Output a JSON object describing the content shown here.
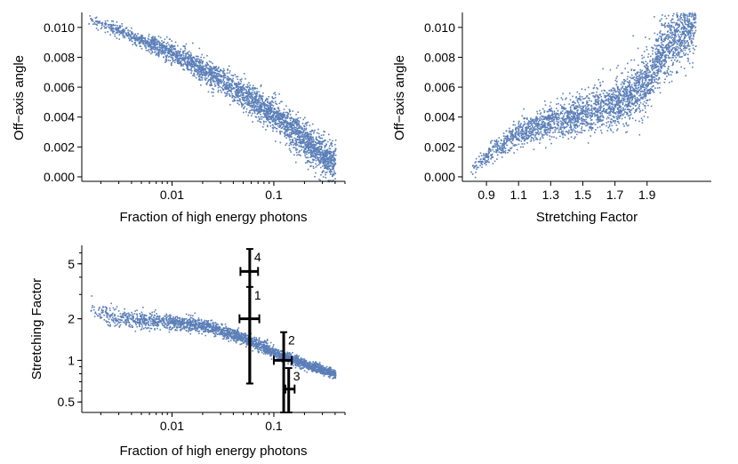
{
  "colors": {
    "points": "#5b7fb8",
    "error_bars": "#000000"
  },
  "chart_data": [
    {
      "id": "top-left",
      "type": "scatter",
      "xlabel": "Fraction of high energy photons",
      "ylabel": "Off−axis angle",
      "x_scale": "log",
      "xlim": [
        0.0013,
        0.5
      ],
      "ylim": [
        -0.0003,
        0.011
      ],
      "xticks": [
        0.01,
        0.1
      ],
      "xtick_labels": [
        "0.01",
        "0.1"
      ],
      "yticks": [
        0.0,
        0.002,
        0.004,
        0.006,
        0.008,
        0.01
      ],
      "ytick_labels": [
        "0.000",
        "0.002",
        "0.004",
        "0.006",
        "0.008",
        "0.010"
      ],
      "trend": [
        [
          0.0015,
          0.0106
        ],
        [
          0.003,
          0.0098
        ],
        [
          0.007,
          0.0088
        ],
        [
          0.015,
          0.0077
        ],
        [
          0.03,
          0.0065
        ],
        [
          0.06,
          0.0052
        ],
        [
          0.1,
          0.0041
        ],
        [
          0.2,
          0.0025
        ],
        [
          0.4,
          0.0008
        ]
      ],
      "n_points": 3000
    },
    {
      "id": "top-right",
      "type": "scatter",
      "xlabel": "Stretching Factor",
      "ylabel": "Off−axis angle",
      "x_scale": "linear",
      "xlim": [
        0.75,
        2.3
      ],
      "ylim": [
        -0.0003,
        0.011
      ],
      "xticks": [
        0.9,
        1.1,
        1.3,
        1.5,
        1.7,
        1.9
      ],
      "xtick_labels": [
        "0.9",
        "1.1",
        "1.3",
        "1.5",
        "1.7",
        "1.9"
      ],
      "yticks": [
        0.0,
        0.002,
        0.004,
        0.006,
        0.008,
        0.01
      ],
      "ytick_labels": [
        "0.000",
        "0.002",
        "0.004",
        "0.006",
        "0.008",
        "0.010"
      ],
      "trend": [
        [
          0.8,
          0.0005
        ],
        [
          0.9,
          0.0015
        ],
        [
          1.0,
          0.0022
        ],
        [
          1.1,
          0.003
        ],
        [
          1.3,
          0.0037
        ],
        [
          1.5,
          0.0042
        ],
        [
          1.7,
          0.0048
        ],
        [
          1.9,
          0.0062
        ],
        [
          2.0,
          0.0085
        ],
        [
          2.2,
          0.0105
        ]
      ],
      "n_points": 3000
    },
    {
      "id": "bottom-left",
      "type": "scatter",
      "xlabel": "Fraction of high energy photons",
      "ylabel": "Stretching Factor",
      "x_scale": "log",
      "y_scale": "log",
      "xlim": [
        0.0013,
        0.5
      ],
      "ylim": [
        0.42,
        6.8
      ],
      "xticks": [
        0.01,
        0.1
      ],
      "xtick_labels": [
        "0.01",
        "0.1"
      ],
      "yticks": [
        0.5,
        1,
        2,
        5
      ],
      "ytick_labels": [
        "0.5",
        "1",
        "2",
        "5"
      ],
      "trend": [
        [
          0.0015,
          2.4
        ],
        [
          0.003,
          2.0
        ],
        [
          0.01,
          1.9
        ],
        [
          0.02,
          1.8
        ],
        [
          0.05,
          1.45
        ],
        [
          0.1,
          1.15
        ],
        [
          0.2,
          0.95
        ],
        [
          0.4,
          0.8
        ]
      ],
      "n_points": 2500,
      "error_points": [
        {
          "label": "1",
          "x": 0.058,
          "y": 2.0,
          "xerr": [
            0.046,
            0.072
          ],
          "yerr": [
            0.68,
            3.4
          ]
        },
        {
          "label": "2",
          "x": 0.125,
          "y": 1.0,
          "xerr": [
            0.1,
            0.15
          ],
          "yerr": [
            0.42,
            1.6
          ]
        },
        {
          "label": "3",
          "x": 0.14,
          "y": 0.62,
          "xerr": [
            0.13,
            0.16
          ],
          "yerr": [
            0.42,
            0.88
          ]
        },
        {
          "label": "4",
          "x": 0.058,
          "y": 4.4,
          "xerr": [
            0.047,
            0.07
          ],
          "yerr": [
            0.68,
            6.4
          ]
        }
      ]
    }
  ]
}
